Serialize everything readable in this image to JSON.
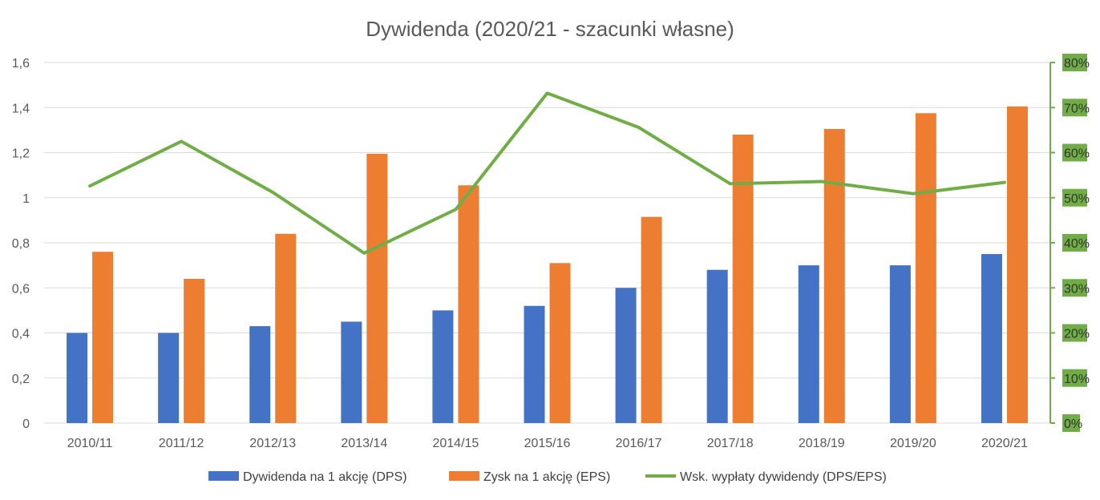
{
  "chart_data": {
    "type": "bar",
    "title": "Dywidenda (2020/21 - szacunki własne)",
    "categories": [
      "2010/11",
      "2011/12",
      "2012/13",
      "2013/14",
      "2014/15",
      "2015/16",
      "2016/17",
      "2017/18",
      "2018/19",
      "2019/20",
      "2020/21"
    ],
    "series": [
      {
        "name": "Dywidenda na 1 akcję (DPS)",
        "type": "bar",
        "axis": "left",
        "color": "#4472C4",
        "values": [
          0.4,
          0.4,
          0.43,
          0.45,
          0.5,
          0.52,
          0.6,
          0.68,
          0.7,
          0.7,
          0.75
        ]
      },
      {
        "name": "Zysk na 1 akcję (EPS)",
        "type": "bar",
        "axis": "left",
        "color": "#ED7D31",
        "values": [
          0.76,
          0.64,
          0.84,
          1.195,
          1.055,
          0.71,
          0.915,
          1.28,
          1.305,
          1.375,
          1.405
        ]
      },
      {
        "name": "Wsk. wypłaty dywidendy (DPS/EPS)",
        "type": "line",
        "axis": "right",
        "color": "#70AD47",
        "values": [
          0.526,
          0.625,
          0.512,
          0.377,
          0.474,
          0.732,
          0.656,
          0.531,
          0.536,
          0.509,
          0.534
        ]
      }
    ],
    "ylim": [
      0,
      1.6
    ],
    "y_ticks": [
      "0",
      "0,2",
      "0,4",
      "0,6",
      "0,8",
      "1",
      "1,2",
      "1,4",
      "1,6"
    ],
    "y2lim": [
      0,
      0.8
    ],
    "y2_ticks": [
      "0%",
      "10%",
      "20%",
      "30%",
      "40%",
      "50%",
      "60%",
      "70%",
      "80%"
    ],
    "y2_axis_color": "#70AD47",
    "grid": true,
    "legend_position": "bottom"
  }
}
